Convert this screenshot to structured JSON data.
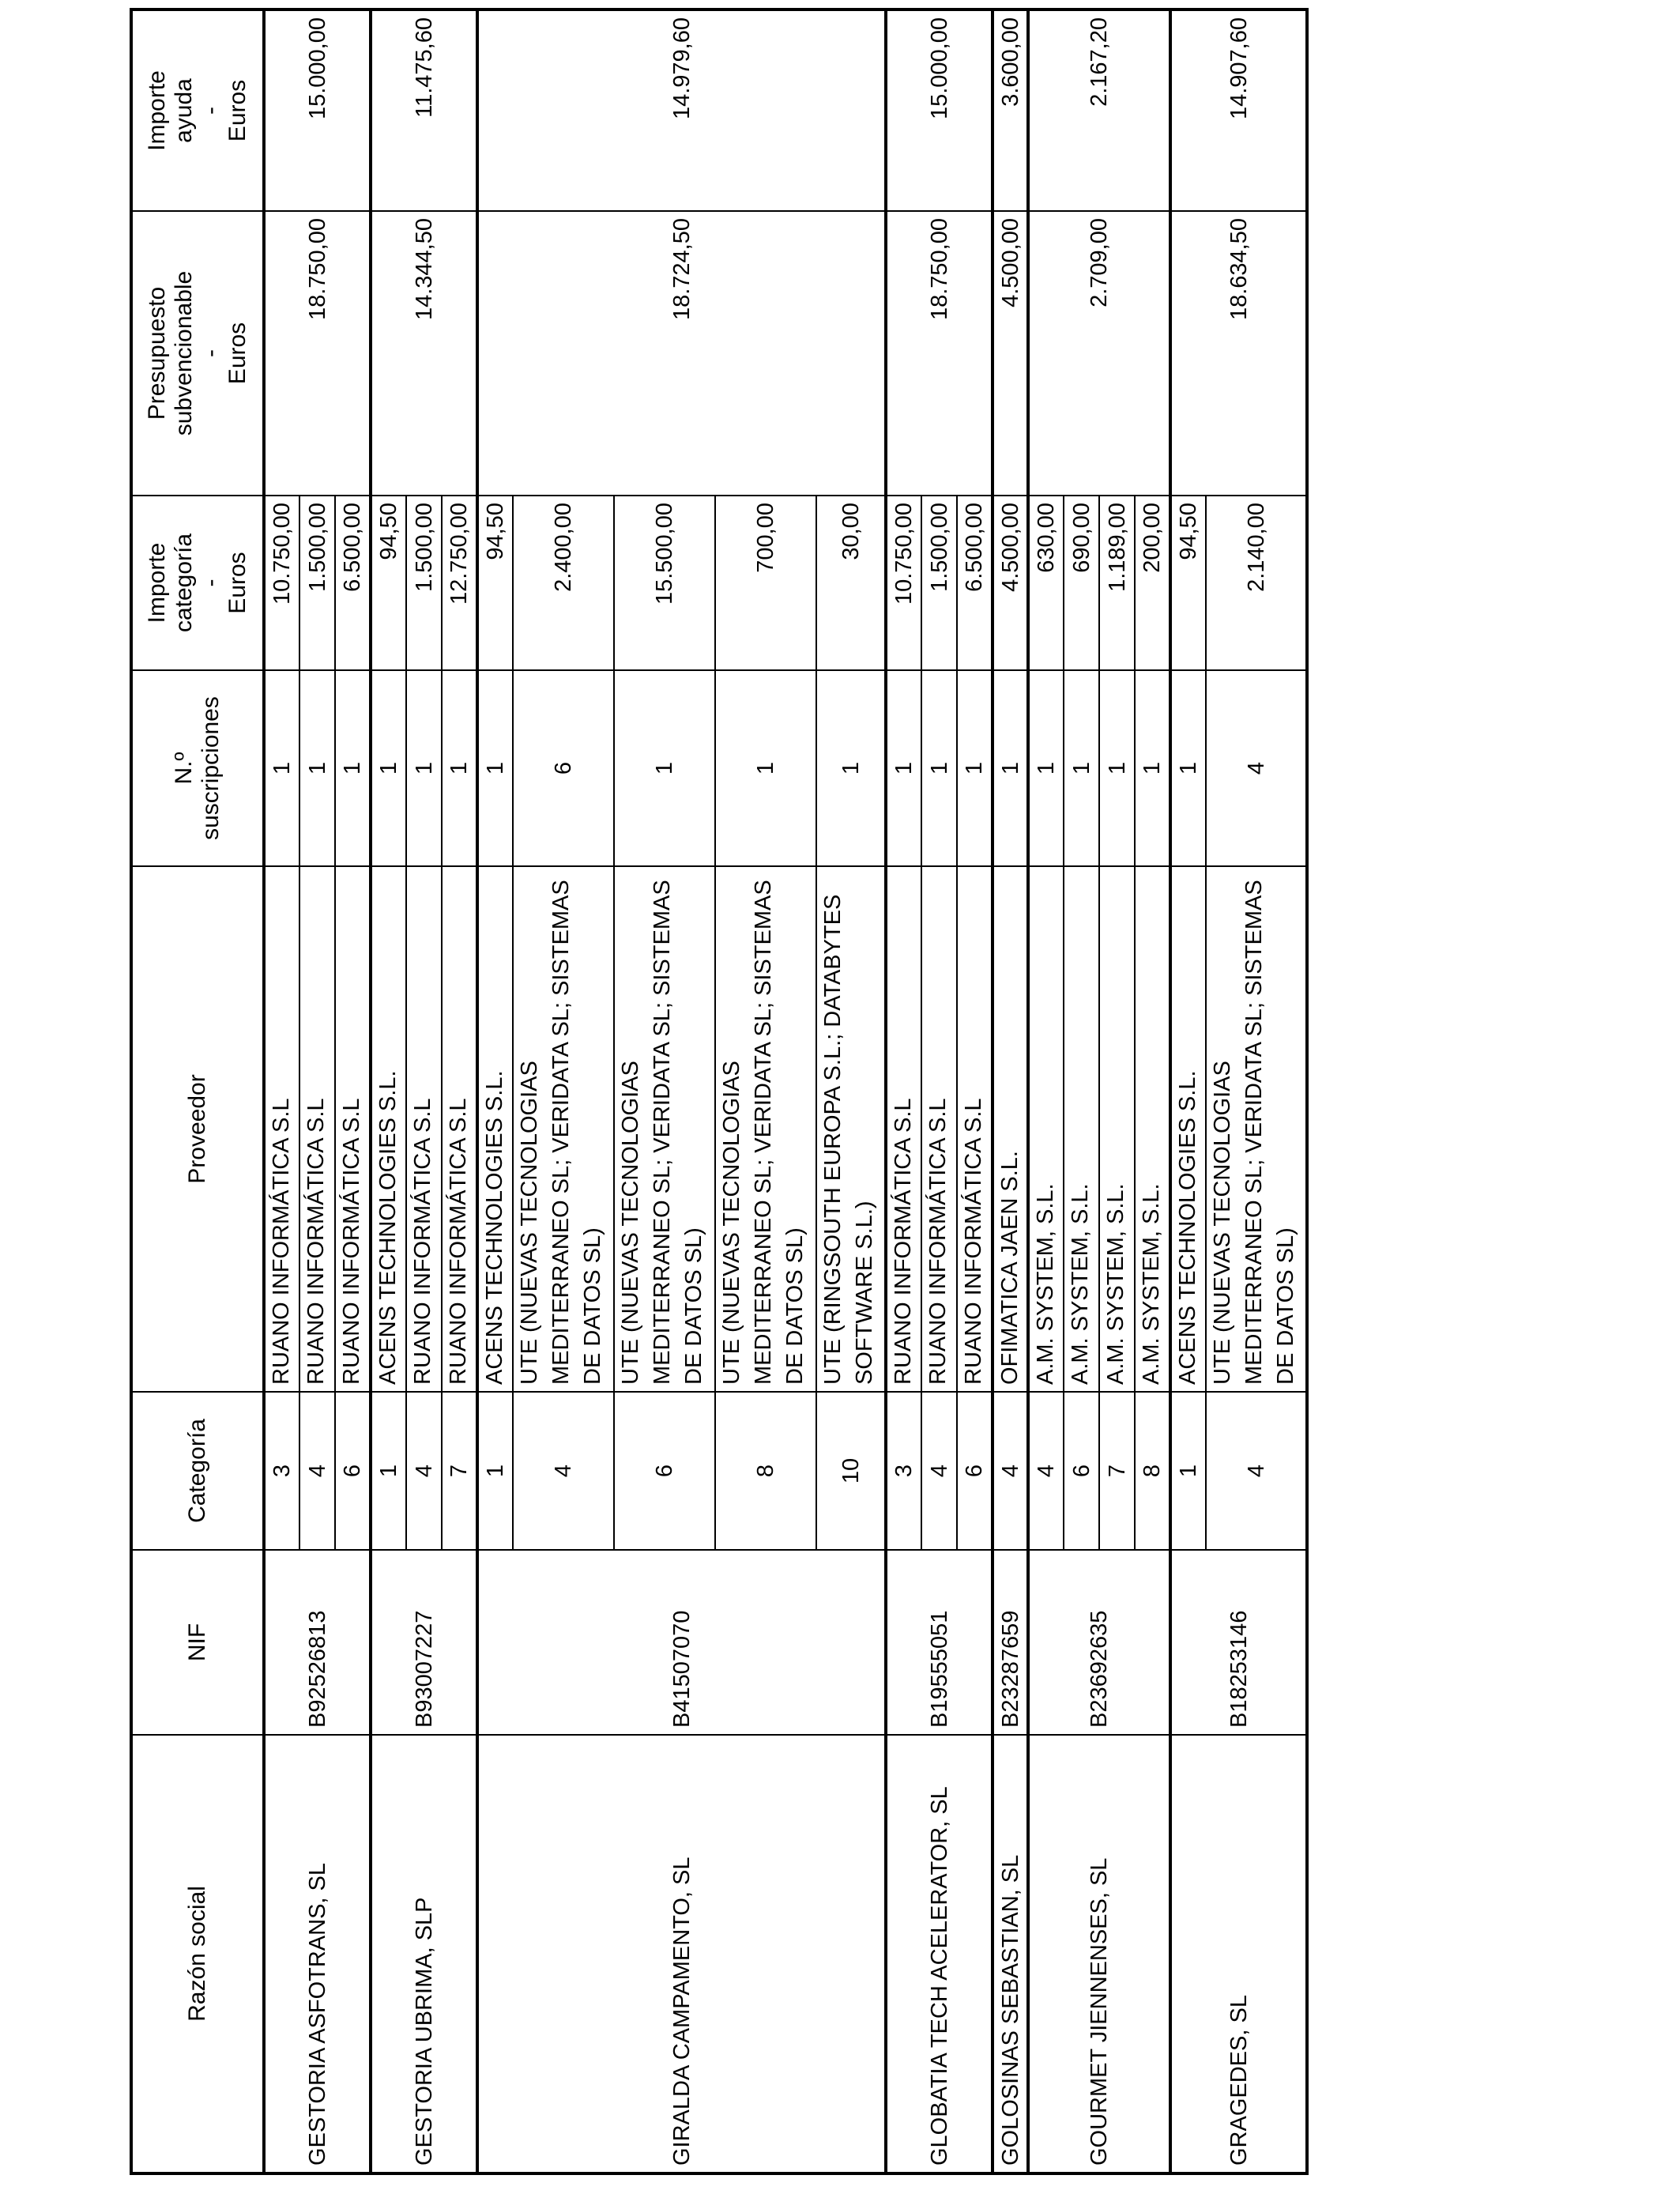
{
  "headers": {
    "razon_social": "Razón social",
    "nif": "NIF",
    "categoria": "Categoría",
    "proveedor": "Proveedor",
    "suscripciones": [
      "N.º",
      "suscripciones"
    ],
    "importe_categoria": [
      "Importe",
      "categoría",
      "-",
      "Euros"
    ],
    "presupuesto": [
      "Presupuesto",
      "subvencionable",
      "-",
      "Euros"
    ],
    "importe_ayuda": [
      "Importe",
      "ayuda",
      "-",
      "Euros"
    ]
  },
  "groups": [
    {
      "razon_social": "GESTORIA ASFOTRANS, SL",
      "nif": "B92526813",
      "presupuesto": "18.750,00",
      "ayuda": "15.000,00",
      "items": [
        {
          "categoria": "3",
          "proveedor": "RUANO INFORMÁTICA S.L",
          "suscripciones": "1",
          "importe": "10.750,00"
        },
        {
          "categoria": "4",
          "proveedor": "RUANO INFORMÁTICA S.L",
          "suscripciones": "1",
          "importe": "1.500,00"
        },
        {
          "categoria": "6",
          "proveedor": "RUANO INFORMÁTICA S.L",
          "suscripciones": "1",
          "importe": "6.500,00"
        }
      ]
    },
    {
      "razon_social": "GESTORIA UBRIMA, SLP",
      "nif": "B93007227",
      "presupuesto": "14.344,50",
      "ayuda": "11.475,60",
      "items": [
        {
          "categoria": "1",
          "proveedor": "ACENS TECHNOLOGIES S.L.",
          "suscripciones": "1",
          "importe": "94,50"
        },
        {
          "categoria": "4",
          "proveedor": "RUANO INFORMÁTICA S.L",
          "suscripciones": "1",
          "importe": "1.500,00"
        },
        {
          "categoria": "7",
          "proveedor": "RUANO INFORMÁTICA S.L",
          "suscripciones": "1",
          "importe": "12.750,00"
        }
      ]
    },
    {
      "razon_social": "GIRALDA CAMPAMENTO, SL",
      "nif": "B41507070",
      "presupuesto": "18.724,50",
      "ayuda": "14.979,60",
      "items": [
        {
          "categoria": "1",
          "proveedor": "ACENS TECHNOLOGIES S.L.",
          "suscripciones": "1",
          "importe": "94,50"
        },
        {
          "categoria": "4",
          "proveedor": "UTE (NUEVAS TECNOLOGIAS MEDITERRANEO SL; VERIDATA SL; SISTEMAS DE DATOS SL)",
          "suscripciones": "6",
          "importe": "2.400,00"
        },
        {
          "categoria": "6",
          "proveedor": "UTE (NUEVAS TECNOLOGIAS MEDITERRANEO SL; VERIDATA SL; SISTEMAS DE DATOS SL)",
          "suscripciones": "1",
          "importe": "15.500,00"
        },
        {
          "categoria": "8",
          "proveedor": "UTE (NUEVAS TECNOLOGIAS MEDITERRANEO SL; VERIDATA SL; SISTEMAS DE DATOS SL)",
          "suscripciones": "1",
          "importe": "700,00"
        },
        {
          "categoria": "10",
          "proveedor": "UTE (RINGSOUTH EUROPA S.L.; DATABYTES SOFTWARE S.L.)",
          "suscripciones": "1",
          "importe": "30,00"
        }
      ]
    },
    {
      "razon_social": "GLOBATIA TECH ACELERATOR, SL",
      "nif": "B19555051",
      "presupuesto": "18.750,00",
      "ayuda": "15.000,00",
      "items": [
        {
          "categoria": "3",
          "proveedor": "RUANO INFORMÁTICA S.L",
          "suscripciones": "1",
          "importe": "10.750,00"
        },
        {
          "categoria": "4",
          "proveedor": "RUANO INFORMÁTICA S.L",
          "suscripciones": "1",
          "importe": "1.500,00"
        },
        {
          "categoria": "6",
          "proveedor": "RUANO INFORMÁTICA S.L",
          "suscripciones": "1",
          "importe": "6.500,00"
        }
      ]
    },
    {
      "razon_social": "GOLOSINAS SEBASTIAN, SL",
      "nif": "B23287659",
      "presupuesto": "4.500,00",
      "ayuda": "3.600,00",
      "items": [
        {
          "categoria": "4",
          "proveedor": "OFIMATICA JAEN S.L.",
          "suscripciones": "1",
          "importe": "4.500,00"
        }
      ]
    },
    {
      "razon_social": "GOURMET JIENNENSES, SL",
      "nif": "B23692635",
      "presupuesto": "2.709,00",
      "ayuda": "2.167,20",
      "items": [
        {
          "categoria": "4",
          "proveedor": "A.M. SYSTEM, S.L.",
          "suscripciones": "1",
          "importe": "630,00"
        },
        {
          "categoria": "6",
          "proveedor": "A.M. SYSTEM, S.L.",
          "suscripciones": "1",
          "importe": "690,00"
        },
        {
          "categoria": "7",
          "proveedor": "A.M. SYSTEM, S.L.",
          "suscripciones": "1",
          "importe": "1.189,00"
        },
        {
          "categoria": "8",
          "proveedor": "A.M. SYSTEM, S.L.",
          "suscripciones": "1",
          "importe": "200,00"
        }
      ]
    },
    {
      "razon_social": "GRAGEDES, SL",
      "nif": "B18253146",
      "presupuesto": "18.634,50",
      "ayuda": "14.907,60",
      "items": [
        {
          "categoria": "1",
          "proveedor": "ACENS TECHNOLOGIES S.L.",
          "suscripciones": "1",
          "importe": "94,50"
        },
        {
          "categoria": "4",
          "proveedor": "UTE (NUEVAS TECNOLOGIAS MEDITERRANEO SL; VERIDATA SL; SISTEMAS DE DATOS SL)",
          "suscripciones": "4",
          "importe": "2.140,00"
        }
      ]
    }
  ]
}
